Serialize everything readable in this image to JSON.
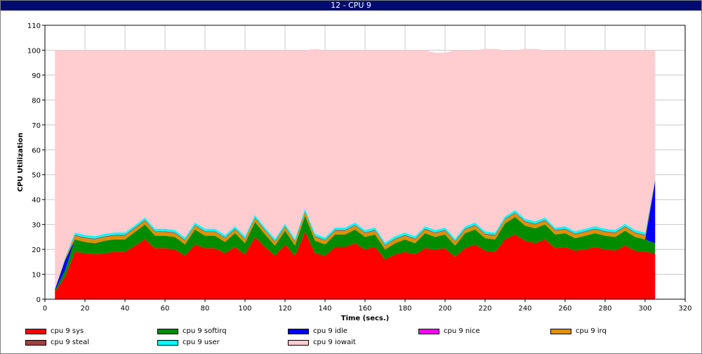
{
  "window": {
    "title": "12 - CPU 9"
  },
  "chart_data": {
    "type": "area",
    "stacked": true,
    "title": "12 - CPU 9",
    "xlabel": "Time (secs.)",
    "ylabel": "CPU Utilization",
    "xlim": [
      0,
      320
    ],
    "ylim": [
      0,
      110
    ],
    "xticks": [
      0,
      20,
      40,
      60,
      80,
      100,
      120,
      140,
      160,
      180,
      200,
      220,
      240,
      260,
      280,
      300,
      320
    ],
    "yticks": [
      0,
      10,
      20,
      30,
      40,
      50,
      60,
      70,
      80,
      90,
      100,
      110
    ],
    "grid": true,
    "legend_position": "bottom",
    "x": [
      5,
      10,
      15,
      20,
      25,
      30,
      35,
      40,
      45,
      50,
      55,
      60,
      65,
      70,
      75,
      80,
      85,
      90,
      95,
      100,
      105,
      110,
      115,
      120,
      125,
      130,
      135,
      140,
      145,
      150,
      155,
      160,
      165,
      170,
      175,
      180,
      185,
      190,
      195,
      200,
      205,
      210,
      215,
      220,
      225,
      230,
      235,
      240,
      245,
      250,
      255,
      260,
      265,
      270,
      275,
      280,
      285,
      290,
      295,
      300,
      305
    ],
    "series": [
      {
        "name": "cpu 9 sys",
        "color": "#ff0000",
        "values": [
          3,
          9,
          19,
          18.5,
          18,
          18.5,
          19,
          19,
          21.5,
          24,
          20.5,
          20.5,
          20,
          17.5,
          22,
          20.5,
          20.5,
          18.5,
          21,
          18,
          25,
          21,
          17.5,
          22,
          17.5,
          27,
          18.5,
          17.5,
          21,
          21,
          22.5,
          20,
          21,
          16,
          18,
          19,
          18,
          20.5,
          20,
          20.5,
          17,
          20.5,
          22,
          19.5,
          19,
          24,
          26,
          23.5,
          22.5,
          24,
          20.5,
          21,
          19.5,
          20,
          21,
          20,
          19.5,
          21.5,
          19.5,
          19,
          18.5
        ]
      },
      {
        "name": "cpu 9 softirq",
        "color": "#008c00",
        "values": [
          0.5,
          2.5,
          5,
          4.5,
          4.5,
          5,
          5,
          5,
          5.5,
          6,
          5,
          5,
          5,
          4.5,
          6,
          5,
          5,
          4.5,
          5.5,
          4.5,
          6,
          5,
          4,
          5.5,
          4,
          6.5,
          5,
          4.5,
          5,
          5,
          5.5,
          5,
          5,
          4,
          4.5,
          5,
          4.5,
          6,
          5,
          5.5,
          4.5,
          6,
          6,
          5,
          5,
          6.5,
          7,
          6,
          6,
          6,
          5.5,
          5.5,
          5,
          5.5,
          5.5,
          5.5,
          5.5,
          6,
          5.5,
          5,
          4
        ]
      },
      {
        "name": "cpu 9 idle",
        "color": "#0000ff",
        "values": [
          0.5,
          4,
          0,
          0,
          0,
          0,
          0,
          0,
          0,
          0,
          0,
          0,
          0,
          0,
          0,
          0,
          0,
          0,
          0,
          0,
          0,
          0,
          0,
          0,
          0,
          0,
          0,
          0,
          0,
          0,
          0,
          0,
          0,
          0,
          0,
          0,
          0,
          0,
          0,
          0,
          0,
          0,
          0,
          0,
          0,
          0,
          0,
          0,
          0,
          0,
          0,
          0,
          0,
          0,
          0,
          0,
          0,
          0,
          0,
          0,
          25
        ]
      },
      {
        "name": "cpu 9 nice",
        "color": "#ff00ff",
        "values": [
          0,
          0,
          0,
          0,
          0,
          0,
          0,
          0,
          0,
          0,
          0,
          0,
          0,
          0,
          0,
          0,
          0,
          0,
          0,
          0,
          0,
          0,
          0,
          0,
          0,
          0,
          0,
          0,
          0,
          0,
          0,
          0,
          0,
          0,
          0,
          0,
          0,
          0,
          0,
          0,
          0,
          0,
          0,
          0,
          0,
          0,
          0,
          0,
          0,
          0,
          0,
          0,
          0,
          0,
          0,
          0,
          0,
          0,
          0,
          0,
          0
        ]
      },
      {
        "name": "cpu 9 irq",
        "color": "#e09000",
        "values": [
          0,
          0.5,
          1.5,
          1.5,
          1.5,
          1.5,
          1.5,
          1.5,
          1.5,
          1.5,
          1.5,
          1.5,
          1.5,
          1.5,
          1.5,
          1.5,
          1.5,
          1.5,
          1.5,
          1.5,
          1.5,
          1.5,
          1.5,
          1.5,
          1.5,
          1.5,
          1.5,
          1.5,
          1.5,
          1.5,
          1.5,
          1.5,
          1.5,
          1.5,
          1.5,
          1.5,
          1.5,
          1.5,
          1.5,
          1.5,
          1.5,
          1.5,
          1.5,
          1.5,
          1.5,
          1.5,
          1.5,
          1.5,
          1.5,
          1.5,
          1.5,
          1.5,
          1.5,
          1.5,
          1.5,
          1.5,
          1.5,
          1.5,
          1.5,
          1.5,
          0.5
        ]
      },
      {
        "name": "cpu 9 steal",
        "color": "#a04040",
        "values": [
          0,
          0,
          0.3,
          0.3,
          0.3,
          0.3,
          0.3,
          0.3,
          0.3,
          0.3,
          0.3,
          0.3,
          0.3,
          0.3,
          0.3,
          0.3,
          0.3,
          0.3,
          0.3,
          0.3,
          0.3,
          0.3,
          0.3,
          0.3,
          0.3,
          0.3,
          0.3,
          0.3,
          0.3,
          0.3,
          0.3,
          0.3,
          0.3,
          0.3,
          0.3,
          0.3,
          0.3,
          0.3,
          0.3,
          0.3,
          0.3,
          0.3,
          0.3,
          0.3,
          0.3,
          0.3,
          0.3,
          0.3,
          0.3,
          0.3,
          0.3,
          0.3,
          0.3,
          0.3,
          0.3,
          0.3,
          0.3,
          0.3,
          0.3,
          0.3,
          0
        ]
      },
      {
        "name": "cpu 9 user",
        "color": "#00ffff",
        "values": [
          0,
          0.5,
          1,
          1,
          1,
          1,
          1,
          1,
          1,
          1,
          1,
          1,
          1,
          1,
          1,
          1,
          1,
          1,
          1,
          1,
          1,
          1,
          1,
          1,
          1,
          1,
          1,
          1,
          1,
          1,
          1,
          1,
          1,
          1,
          1,
          1,
          1,
          1,
          1,
          1,
          1,
          1,
          1,
          1,
          1,
          1,
          1,
          1,
          1,
          1,
          1,
          1,
          1,
          1,
          1,
          1,
          1,
          1,
          1,
          1,
          0.5
        ]
      },
      {
        "name": "cpu 9 iowait",
        "color": "#ffccd0",
        "values": [
          96,
          83.5,
          73.2,
          74.2,
          74.7,
          73.7,
          73.2,
          73.2,
          70.2,
          67.2,
          71.7,
          71.7,
          72.2,
          75.2,
          69.2,
          71.7,
          71.7,
          74.2,
          70.7,
          74.7,
          66.2,
          71.2,
          75.7,
          69.7,
          75.7,
          63.7,
          74.2,
          75.2,
          71.2,
          71.2,
          69.2,
          72.2,
          71.2,
          77.2,
          74.7,
          73.2,
          74.7,
          70.7,
          71.2,
          70.2,
          75.7,
          70.7,
          69.2,
          73.2,
          73.7,
          66.7,
          64.2,
          68.2,
          69.2,
          67.2,
          71.2,
          70.7,
          72.7,
          71.7,
          70.7,
          71.7,
          72.2,
          69.7,
          72.2,
          73.2,
          51.5
        ]
      }
    ]
  },
  "legend": [
    {
      "label": "cpu 9 sys",
      "color": "#ff0000"
    },
    {
      "label": "cpu 9 softirq",
      "color": "#008c00"
    },
    {
      "label": "cpu 9 idle",
      "color": "#0000ff"
    },
    {
      "label": "cpu 9 nice",
      "color": "#ff00ff"
    },
    {
      "label": "cpu 9 irq",
      "color": "#e09000"
    },
    {
      "label": "cpu 9 steal",
      "color": "#a04040"
    },
    {
      "label": "cpu 9 user",
      "color": "#00ffff"
    },
    {
      "label": "cpu 9 iowait",
      "color": "#ffccd0"
    }
  ]
}
